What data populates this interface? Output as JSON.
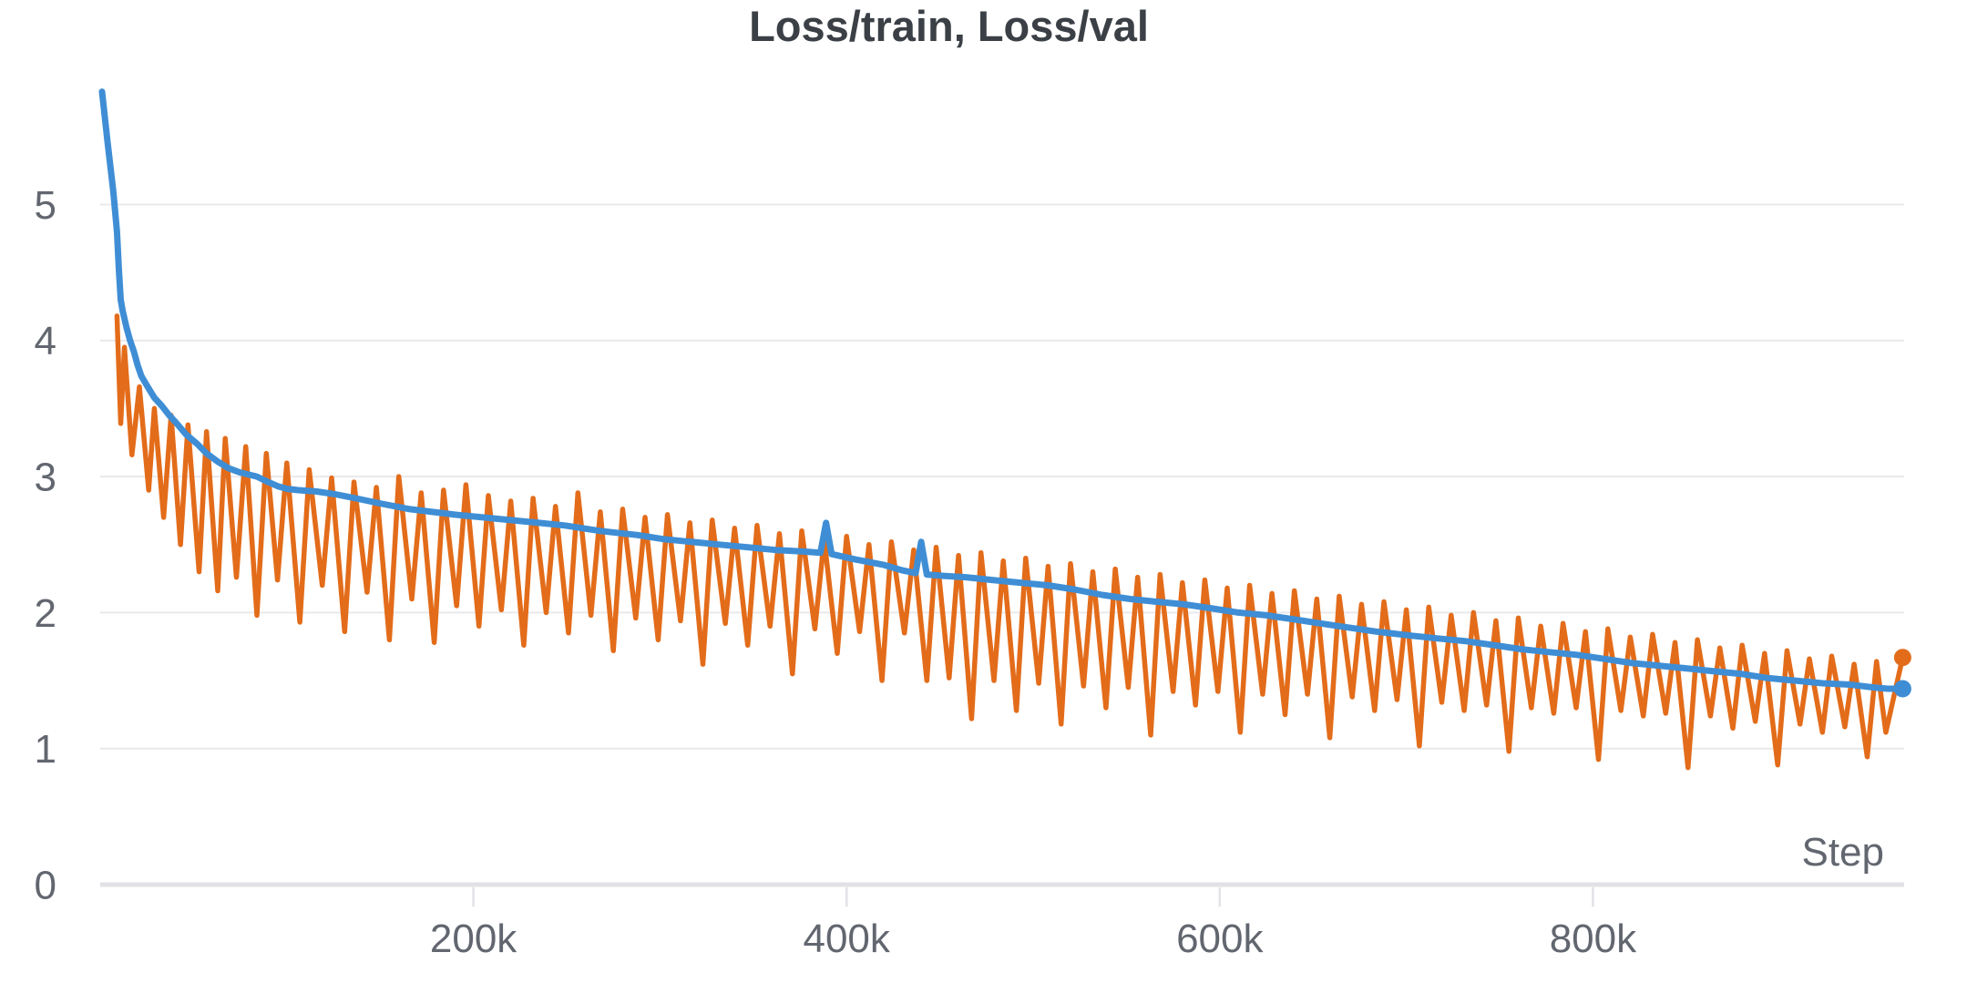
{
  "header": {
    "title": "Loss/train, Loss/val"
  },
  "colors": {
    "background": "#ffffff",
    "title_text": "#3b4046",
    "axis_text": "#62666f",
    "gridline": "#e9e9ec",
    "zero_line": "#e2e2e6",
    "tick_mark": "#e2e2e6",
    "train_series": "#e36c1a",
    "val_series": "#3f8ed5"
  },
  "chart_data": {
    "type": "line",
    "title": "Loss/train, Loss/val",
    "xlabel": "Step",
    "ylabel": "",
    "x_unit": "training steps (values stored in thousands of steps)",
    "xlim": [
      0,
      985
    ],
    "ylim": [
      0,
      6.07
    ],
    "grid": "horizontal-only",
    "legend_position": "none (series named in title)",
    "x_ticks": [
      {
        "value": 200,
        "label": "200k"
      },
      {
        "value": 400,
        "label": "400k"
      },
      {
        "value": 600,
        "label": "600k"
      },
      {
        "value": 800,
        "label": "800k"
      }
    ],
    "y_ticks": [
      {
        "value": 0,
        "label": "0"
      },
      {
        "value": 1,
        "label": "1"
      },
      {
        "value": 2,
        "label": "2"
      },
      {
        "value": 3,
        "label": "3"
      },
      {
        "value": 4,
        "label": "4"
      },
      {
        "value": 5,
        "label": "5"
      }
    ],
    "series": [
      {
        "name": "Loss/train",
        "color": "#e36c1a",
        "stroke_width": 5.5,
        "style": "noisy-sawtooth",
        "end_dot": true,
        "end_value": 1.67,
        "points": [
          [
            9,
            4.18
          ],
          [
            11,
            3.39
          ],
          [
            13,
            3.95
          ],
          [
            17,
            3.16
          ],
          [
            21,
            3.66
          ],
          [
            26,
            2.9
          ],
          [
            29,
            3.5
          ],
          [
            34,
            2.7
          ],
          [
            38,
            3.45
          ],
          [
            43,
            2.5
          ],
          [
            47,
            3.38
          ],
          [
            53,
            2.3
          ],
          [
            57,
            3.33
          ],
          [
            63,
            2.16
          ],
          [
            67,
            3.28
          ],
          [
            73,
            2.26
          ],
          [
            78,
            3.22
          ],
          [
            84,
            1.98
          ],
          [
            89,
            3.17
          ],
          [
            95,
            2.24
          ],
          [
            100,
            3.1
          ],
          [
            107,
            1.93
          ],
          [
            112,
            3.05
          ],
          [
            119,
            2.2
          ],
          [
            124,
            2.99
          ],
          [
            131,
            1.86
          ],
          [
            136,
            2.96
          ],
          [
            143,
            2.15
          ],
          [
            148,
            2.92
          ],
          [
            155,
            1.8
          ],
          [
            160,
            3.0
          ],
          [
            167,
            2.1
          ],
          [
            172,
            2.88
          ],
          [
            179,
            1.78
          ],
          [
            184,
            2.9
          ],
          [
            191,
            2.05
          ],
          [
            196,
            2.94
          ],
          [
            203,
            1.9
          ],
          [
            208,
            2.86
          ],
          [
            215,
            2.02
          ],
          [
            220,
            2.82
          ],
          [
            227,
            1.76
          ],
          [
            232,
            2.84
          ],
          [
            239,
            2.0
          ],
          [
            244,
            2.78
          ],
          [
            251,
            1.85
          ],
          [
            256,
            2.88
          ],
          [
            263,
            1.98
          ],
          [
            268,
            2.74
          ],
          [
            275,
            1.72
          ],
          [
            280,
            2.76
          ],
          [
            287,
            1.96
          ],
          [
            292,
            2.7
          ],
          [
            299,
            1.8
          ],
          [
            304,
            2.72
          ],
          [
            311,
            1.94
          ],
          [
            316,
            2.66
          ],
          [
            323,
            1.62
          ],
          [
            328,
            2.68
          ],
          [
            335,
            1.92
          ],
          [
            340,
            2.62
          ],
          [
            347,
            1.76
          ],
          [
            352,
            2.64
          ],
          [
            359,
            1.9
          ],
          [
            364,
            2.58
          ],
          [
            371,
            1.55
          ],
          [
            376,
            2.6
          ],
          [
            383,
            1.88
          ],
          [
            388,
            2.54
          ],
          [
            395,
            1.7
          ],
          [
            400,
            2.56
          ],
          [
            407,
            1.86
          ],
          [
            412,
            2.5
          ],
          [
            419,
            1.5
          ],
          [
            424,
            2.52
          ],
          [
            431,
            1.85
          ],
          [
            436,
            2.46
          ],
          [
            443,
            1.5
          ],
          [
            448,
            2.48
          ],
          [
            455,
            1.52
          ],
          [
            460,
            2.42
          ],
          [
            467,
            1.22
          ],
          [
            472,
            2.44
          ],
          [
            479,
            1.5
          ],
          [
            484,
            2.38
          ],
          [
            491,
            1.28
          ],
          [
            496,
            2.4
          ],
          [
            503,
            1.48
          ],
          [
            508,
            2.34
          ],
          [
            515,
            1.18
          ],
          [
            520,
            2.36
          ],
          [
            527,
            1.46
          ],
          [
            532,
            2.3
          ],
          [
            539,
            1.3
          ],
          [
            544,
            2.32
          ],
          [
            551,
            1.45
          ],
          [
            556,
            2.26
          ],
          [
            563,
            1.1
          ],
          [
            568,
            2.28
          ],
          [
            575,
            1.42
          ],
          [
            580,
            2.22
          ],
          [
            587,
            1.32
          ],
          [
            592,
            2.24
          ],
          [
            599,
            1.42
          ],
          [
            604,
            2.18
          ],
          [
            611,
            1.12
          ],
          [
            616,
            2.2
          ],
          [
            623,
            1.4
          ],
          [
            628,
            2.14
          ],
          [
            635,
            1.25
          ],
          [
            640,
            2.16
          ],
          [
            647,
            1.4
          ],
          [
            652,
            2.1
          ],
          [
            659,
            1.08
          ],
          [
            664,
            2.12
          ],
          [
            671,
            1.38
          ],
          [
            676,
            2.06
          ],
          [
            683,
            1.28
          ],
          [
            688,
            2.08
          ],
          [
            695,
            1.36
          ],
          [
            700,
            2.02
          ],
          [
            707,
            1.02
          ],
          [
            712,
            2.04
          ],
          [
            719,
            1.34
          ],
          [
            724,
            1.98
          ],
          [
            731,
            1.28
          ],
          [
            736,
            2.0
          ],
          [
            743,
            1.32
          ],
          [
            748,
            1.94
          ],
          [
            755,
            0.98
          ],
          [
            760,
            1.96
          ],
          [
            767,
            1.3
          ],
          [
            772,
            1.9
          ],
          [
            779,
            1.26
          ],
          [
            784,
            1.92
          ],
          [
            791,
            1.3
          ],
          [
            796,
            1.86
          ],
          [
            803,
            0.92
          ],
          [
            808,
            1.88
          ],
          [
            815,
            1.28
          ],
          [
            820,
            1.82
          ],
          [
            827,
            1.24
          ],
          [
            832,
            1.84
          ],
          [
            839,
            1.26
          ],
          [
            844,
            1.78
          ],
          [
            851,
            0.86
          ],
          [
            856,
            1.8
          ],
          [
            863,
            1.24
          ],
          [
            868,
            1.74
          ],
          [
            875,
            1.15
          ],
          [
            880,
            1.76
          ],
          [
            887,
            1.2
          ],
          [
            892,
            1.7
          ],
          [
            899,
            0.88
          ],
          [
            904,
            1.72
          ],
          [
            911,
            1.18
          ],
          [
            916,
            1.66
          ],
          [
            923,
            1.12
          ],
          [
            928,
            1.68
          ],
          [
            935,
            1.16
          ],
          [
            940,
            1.62
          ],
          [
            947,
            0.94
          ],
          [
            952,
            1.64
          ],
          [
            957,
            1.12
          ],
          [
            966,
            1.67
          ]
        ]
      },
      {
        "name": "Loss/val",
        "color": "#3f8ed5",
        "stroke_width": 7,
        "style": "smooth",
        "end_dot": true,
        "end_value": 1.44,
        "points": [
          [
            1,
            5.83
          ],
          [
            4,
            5.45
          ],
          [
            7,
            5.1
          ],
          [
            9,
            4.8
          ],
          [
            10,
            4.52
          ],
          [
            11,
            4.3
          ],
          [
            12,
            4.22
          ],
          [
            14,
            4.1
          ],
          [
            16,
            4.0
          ],
          [
            18,
            3.92
          ],
          [
            20,
            3.82
          ],
          [
            22,
            3.74
          ],
          [
            25,
            3.67
          ],
          [
            29,
            3.58
          ],
          [
            33,
            3.52
          ],
          [
            37,
            3.45
          ],
          [
            41,
            3.39
          ],
          [
            46,
            3.31
          ],
          [
            52,
            3.24
          ],
          [
            57,
            3.17
          ],
          [
            63,
            3.11
          ],
          [
            69,
            3.06
          ],
          [
            75,
            3.03
          ],
          [
            84,
            3.0
          ],
          [
            90,
            2.96
          ],
          [
            95,
            2.93
          ],
          [
            100,
            2.91
          ],
          [
            106,
            2.9
          ],
          [
            116,
            2.89
          ],
          [
            126,
            2.87
          ],
          [
            137,
            2.84
          ],
          [
            151,
            2.8
          ],
          [
            166,
            2.76
          ],
          [
            178,
            2.74
          ],
          [
            190,
            2.72
          ],
          [
            205,
            2.7
          ],
          [
            220,
            2.68
          ],
          [
            235,
            2.66
          ],
          [
            249,
            2.64
          ],
          [
            268,
            2.6
          ],
          [
            288,
            2.57
          ],
          [
            302,
            2.54
          ],
          [
            317,
            2.52
          ],
          [
            332,
            2.5
          ],
          [
            347,
            2.48
          ],
          [
            362,
            2.46
          ],
          [
            376,
            2.45
          ],
          [
            386,
            2.44
          ],
          [
            389,
            2.66
          ],
          [
            392,
            2.43
          ],
          [
            405,
            2.39
          ],
          [
            420,
            2.35
          ],
          [
            430,
            2.31
          ],
          [
            437,
            2.29
          ],
          [
            440,
            2.52
          ],
          [
            443,
            2.28
          ],
          [
            452,
            2.27
          ],
          [
            464,
            2.26
          ],
          [
            478,
            2.24
          ],
          [
            493,
            2.22
          ],
          [
            508,
            2.2
          ],
          [
            522,
            2.17
          ],
          [
            537,
            2.13
          ],
          [
            552,
            2.1
          ],
          [
            566,
            2.08
          ],
          [
            581,
            2.06
          ],
          [
            596,
            2.03
          ],
          [
            610,
            2.0
          ],
          [
            625,
            1.98
          ],
          [
            640,
            1.95
          ],
          [
            654,
            1.92
          ],
          [
            669,
            1.89
          ],
          [
            684,
            1.86
          ],
          [
            703,
            1.83
          ],
          [
            717,
            1.81
          ],
          [
            732,
            1.79
          ],
          [
            747,
            1.76
          ],
          [
            762,
            1.73
          ],
          [
            776,
            1.71
          ],
          [
            791,
            1.69
          ],
          [
            806,
            1.66
          ],
          [
            820,
            1.63
          ],
          [
            835,
            1.61
          ],
          [
            850,
            1.59
          ],
          [
            864,
            1.57
          ],
          [
            879,
            1.55
          ],
          [
            893,
            1.52
          ],
          [
            908,
            1.5
          ],
          [
            923,
            1.48
          ],
          [
            938,
            1.47
          ],
          [
            950,
            1.45
          ],
          [
            958,
            1.44
          ],
          [
            966,
            1.44
          ]
        ]
      }
    ]
  }
}
